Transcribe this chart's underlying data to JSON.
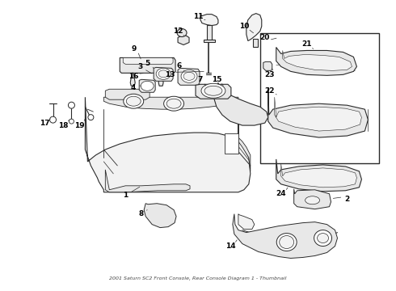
{
  "title": "2001 Saturn SC2 Front Console, Rear Console Diagram 1",
  "background_color": "#ffffff",
  "text_color": "#000000",
  "figsize": [
    4.9,
    3.6
  ],
  "dpi": 100,
  "caption": "2001 Saturn SC2 Front Console, Rear Console Diagram 1 - Thumbnail",
  "dark": "#2a2a2a",
  "mid": "#888888",
  "light_fill": "#e8e8e8",
  "lighter_fill": "#f2f2f2"
}
